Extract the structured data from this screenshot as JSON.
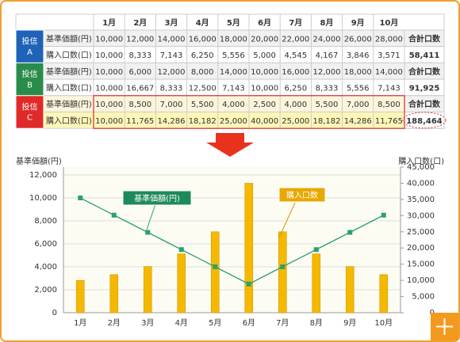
{
  "table": {
    "header": [
      "1月",
      "2月",
      "3月",
      "4月",
      "5月",
      "6月",
      "7月",
      "8月",
      "9月",
      "10月"
    ],
    "groups": [
      {
        "name": "投信",
        "id": "A",
        "color": "#1f63b8",
        "rows": [
          {
            "label": "基準価額(円)",
            "cells": [
              "10,000",
              "12,000",
              "14,000",
              "16,000",
              "18,000",
              "20,000",
              "22,000",
              "24,000",
              "26,000",
              "28,000"
            ],
            "summary": "合計口数"
          },
          {
            "label": "購入口数(口)",
            "cells": [
              "10,000",
              "8,333",
              "7,143",
              "6,250",
              "5,556",
              "5,000",
              "4,545",
              "4,167",
              "3,846",
              "3,571"
            ],
            "summary": "58,411"
          }
        ]
      },
      {
        "name": "投信",
        "id": "B",
        "color": "#2a8c4a",
        "rows": [
          {
            "label": "基準価額(円)",
            "cells": [
              "10,000",
              "6,000",
              "12,000",
              "8,000",
              "14,000",
              "10,000",
              "16,000",
              "12,000",
              "18,000",
              "14,000"
            ],
            "summary": "合計口数"
          },
          {
            "label": "購入口数(口)",
            "cells": [
              "10,000",
              "16,667",
              "8,333",
              "12,500",
              "7,143",
              "10,000",
              "6,250",
              "8,333",
              "5,556",
              "7,143"
            ],
            "summary": "91,925"
          }
        ]
      },
      {
        "name": "投信",
        "id": "C",
        "color": "#e02a2a",
        "rows": [
          {
            "label": "基準価額(円)",
            "cells": [
              "10,000",
              "8,500",
              "7,000",
              "5,500",
              "4,000",
              "2,500",
              "4,000",
              "5,500",
              "7,000",
              "8,500"
            ],
            "summary": "合計口数"
          },
          {
            "label": "購入口数(口)",
            "cells": [
              "10,000",
              "11,765",
              "14,286",
              "18,182",
              "25,000",
              "40,000",
              "25,000",
              "18,182",
              "14,286",
              "11,765"
            ],
            "summary": "188,464"
          }
        ]
      }
    ]
  },
  "chart_data": {
    "type": "combo",
    "y_label": "基準価額(円)",
    "y2_label": "購入口数(口)",
    "categories": [
      "1月",
      "2月",
      "3月",
      "4月",
      "5月",
      "6月",
      "7月",
      "8月",
      "9月",
      "10月"
    ],
    "series": [
      {
        "name": "基準価額(円)",
        "type": "line",
        "axis": "y",
        "color": "#2aa070",
        "values": [
          10000,
          8500,
          7000,
          5500,
          4000,
          2500,
          4000,
          5500,
          7000,
          8500
        ]
      },
      {
        "name": "購入口数",
        "type": "bar",
        "axis": "y2",
        "color": "#f5b800",
        "values": [
          10000,
          11765,
          14286,
          18182,
          25000,
          40000,
          25000,
          18182,
          14286,
          11765
        ]
      }
    ],
    "ylim": [
      0,
      12000
    ],
    "yticks": [
      0,
      {
        "value": 2000,
        "label": "2,000"
      },
      {
        "value": 4000,
        "label": "4,000"
      },
      {
        "value": 6000,
        "label": "6,000"
      },
      {
        "value": 8000,
        "label": "8,000"
      },
      {
        "value": 10000,
        "label": "10,000"
      },
      {
        "value": 12000,
        "label": "12,000"
      }
    ],
    "y2lim": [
      0,
      45000
    ],
    "y2ticks": [
      0,
      {
        "value": 5000,
        "label": "5,000"
      },
      {
        "value": 10000,
        "label": "10,000"
      },
      {
        "value": 15000,
        "label": "15,000"
      },
      {
        "value": 20000,
        "label": "20,000"
      },
      {
        "value": 25000,
        "label": "25,000"
      },
      {
        "value": 30000,
        "label": "30,000"
      },
      {
        "value": 35000,
        "label": "35,000"
      },
      {
        "value": 40000,
        "label": "40,000"
      },
      {
        "value": 45000,
        "label": "45,000"
      }
    ],
    "grid": true
  }
}
